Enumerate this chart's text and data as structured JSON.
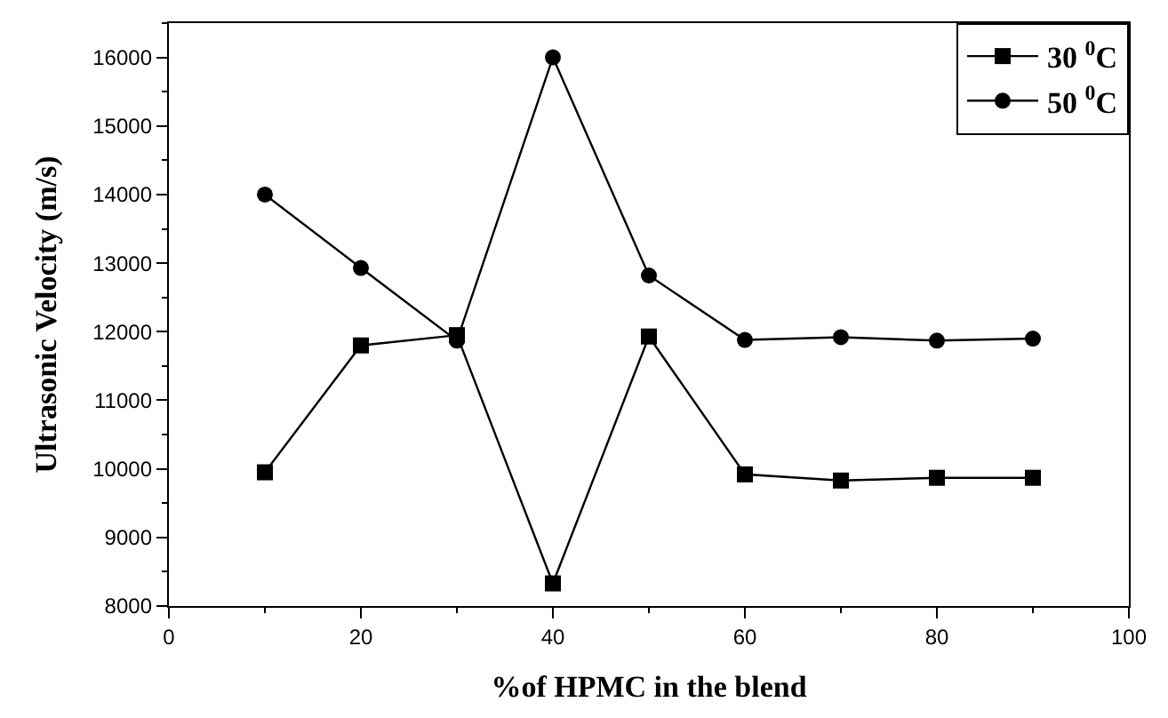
{
  "chart_data": {
    "type": "line",
    "xlabel": "%of HPMC in the blend",
    "ylabel": "Ultrasonic Velocity (m/s)",
    "x": [
      10,
      20,
      30,
      40,
      50,
      60,
      70,
      80,
      90
    ],
    "series": [
      {
        "name": "30 $^{0}$C",
        "color": "#000000",
        "marker": "square",
        "values": [
          9950,
          11800,
          11950,
          8330,
          11930,
          9920,
          9830,
          9870,
          9870
        ]
      },
      {
        "name": "50 $^{0}$C",
        "color": "#000000",
        "marker": "circle",
        "values": [
          14000,
          12930,
          11870,
          16000,
          12820,
          11880,
          11920,
          11870,
          11900
        ]
      }
    ],
    "xlim": [
      0,
      100
    ],
    "xticks": [
      0,
      20,
      40,
      60,
      80,
      100
    ],
    "ylim": [
      8000,
      16500
    ],
    "yticks": [
      8000,
      9000,
      10000,
      11000,
      12000,
      13000,
      14000,
      15000,
      16000
    ],
    "legend": "top right",
    "line_style": "solid"
  }
}
